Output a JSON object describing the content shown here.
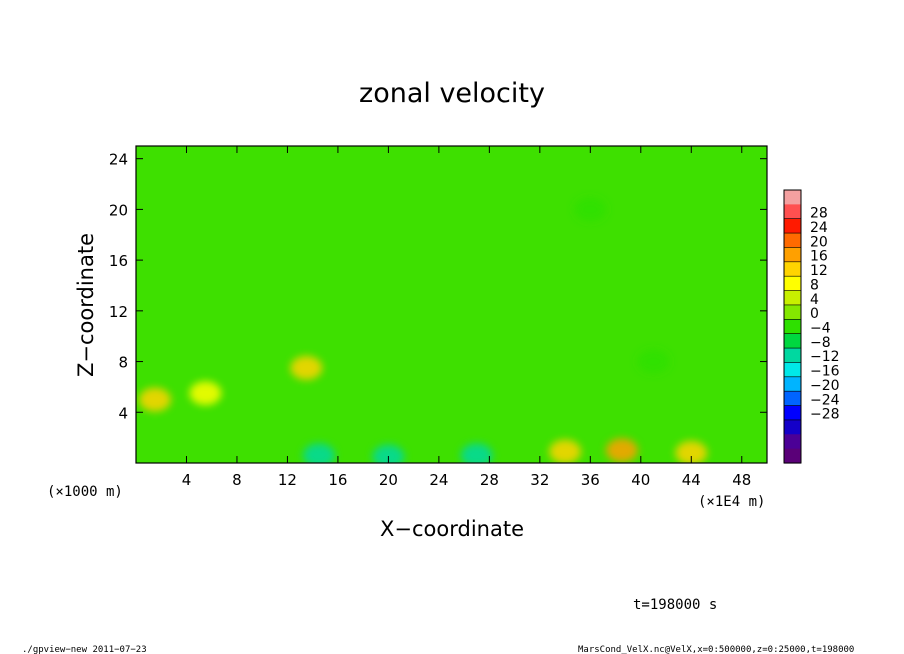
{
  "chart_data": {
    "type": "heatmap",
    "title": "zonal velocity",
    "xlabel": "X−coordinate",
    "ylabel": "Z−coordinate",
    "x_unit_left": "(×1000 m)",
    "x_unit_right": "(×1E4 m)",
    "xlim": [
      0,
      50
    ],
    "ylim": [
      0,
      25
    ],
    "xticks": [
      4,
      8,
      12,
      16,
      20,
      24,
      28,
      32,
      36,
      40,
      44,
      48
    ],
    "xtick_labels": [
      "4",
      "8",
      "12",
      "16",
      "20",
      "24",
      "28",
      "32",
      "36",
      "40",
      "44",
      "48"
    ],
    "yticks": [
      4,
      8,
      12,
      16,
      20,
      24
    ],
    "ytick_labels": [
      "4",
      "8",
      "12",
      "16",
      "20",
      "24"
    ],
    "colorbar": {
      "levels": [
        28,
        24,
        20,
        16,
        12,
        8,
        4,
        0,
        -4,
        -8,
        -12,
        -16,
        -20,
        -24,
        -28
      ],
      "labels": [
        "28",
        "24",
        "20",
        "16",
        "12",
        "8",
        "4",
        "0",
        "−4",
        "−8",
        "−12",
        "−16",
        "−20",
        "−24",
        "−28"
      ],
      "colors": [
        "#f4a0a0",
        "#ff5050",
        "#ff1a00",
        "#ff6a00",
        "#ffa000",
        "#ffd400",
        "#ffff00",
        "#c8f000",
        "#84e800",
        "#2ee000",
        "#00d840",
        "#00d8a0",
        "#00e8e8",
        "#00b4ff",
        "#0064ff",
        "#0000ff",
        "#1400c8",
        "#4b0096",
        "#5a0078"
      ]
    },
    "field_features": [
      {
        "x": 13.5,
        "z": 7.5,
        "value": 10
      },
      {
        "x": 1.5,
        "z": 5.0,
        "value": 9
      },
      {
        "x": 5.5,
        "z": 5.5,
        "value": 8
      },
      {
        "x": 14.5,
        "z": 0.6,
        "value": -14
      },
      {
        "x": 20.0,
        "z": 0.5,
        "value": -12
      },
      {
        "x": 27.0,
        "z": 0.6,
        "value": -14
      },
      {
        "x": 34.0,
        "z": 0.9,
        "value": 12
      },
      {
        "x": 38.5,
        "z": 1.0,
        "value": 13
      },
      {
        "x": 44.0,
        "z": 0.8,
        "value": 10
      },
      {
        "x": 36.0,
        "z": 20.0,
        "value": -5
      },
      {
        "x": 41.0,
        "z": 8.0,
        "value": -5
      }
    ],
    "grid": false
  },
  "annotations": {
    "time": "t=198000 s",
    "footer_left": "./gpview−new   2011−07−23",
    "footer_right": "MarsCond_VelX.nc@VelX,x=0:500000,z=0:25000,t=198000"
  }
}
